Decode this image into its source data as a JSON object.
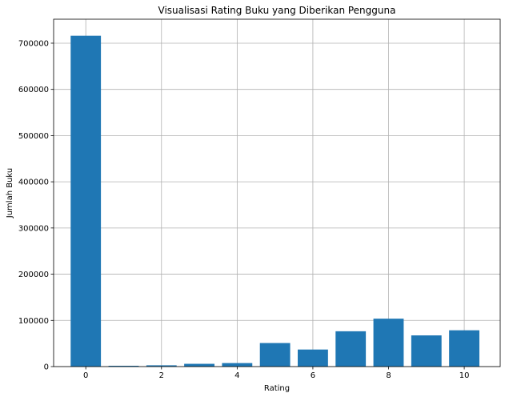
{
  "chart_data": {
    "type": "bar",
    "title": "Visualisasi Rating Buku yang Diberikan Pengguna",
    "xlabel": "Rating",
    "ylabel": "Jumlah Buku",
    "categories": [
      0,
      1,
      2,
      3,
      4,
      5,
      6,
      7,
      8,
      9,
      10
    ],
    "values": [
      716109,
      1770,
      2759,
      5996,
      7617,
      50974,
      36924,
      76457,
      103736,
      67541,
      78610
    ],
    "xlim": [
      -0.85,
      10.95
    ],
    "ylim": [
      0,
      751914
    ],
    "xticks": [
      0,
      2,
      4,
      6,
      8,
      10
    ],
    "yticks": [
      0,
      100000,
      200000,
      300000,
      400000,
      500000,
      600000,
      700000
    ],
    "grid": true,
    "bar_color": "#1f77b4"
  }
}
